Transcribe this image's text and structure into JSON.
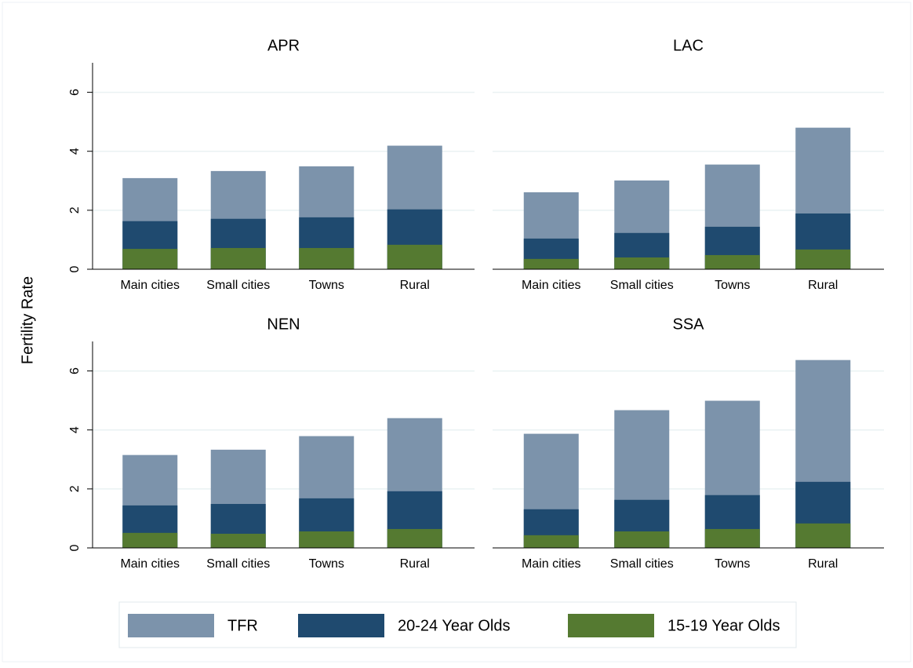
{
  "chart_data": {
    "type": "bar",
    "y_label": "Fertility Rate",
    "categories": [
      "Main cities",
      "Small cities",
      "Towns",
      "Rural"
    ],
    "ylim": [
      0,
      7
    ],
    "yticks": [
      0,
      2,
      4,
      6
    ],
    "grid": true,
    "series": [
      {
        "name": "TFR",
        "color": "#7c93ab"
      },
      {
        "name": "20-24 Year Olds",
        "color": "#1f4a6f"
      },
      {
        "name": "15-19 Year Olds",
        "color": "#557a31"
      }
    ],
    "panels": [
      {
        "title": "APR",
        "series": [
          {
            "values": [
              3.09,
              3.33,
              3.49,
              4.19
            ]
          },
          {
            "values": [
              1.63,
              1.71,
              1.76,
              2.03
            ]
          },
          {
            "values": [
              0.69,
              0.72,
              0.72,
              0.83
            ]
          }
        ]
      },
      {
        "title": "LAC",
        "series": [
          {
            "values": [
              2.61,
              3.01,
              3.55,
              4.8
            ]
          },
          {
            "values": [
              1.04,
              1.23,
              1.44,
              1.89
            ]
          },
          {
            "values": [
              0.35,
              0.4,
              0.48,
              0.67
            ]
          }
        ]
      },
      {
        "title": "NEN",
        "series": [
          {
            "values": [
              3.15,
              3.33,
              3.79,
              4.4
            ]
          },
          {
            "values": [
              1.44,
              1.49,
              1.68,
              1.92
            ]
          },
          {
            "values": [
              0.51,
              0.48,
              0.56,
              0.64
            ]
          }
        ]
      },
      {
        "title": "SSA",
        "series": [
          {
            "values": [
              3.87,
              4.67,
              4.99,
              6.37
            ]
          },
          {
            "values": [
              1.31,
              1.63,
              1.79,
              2.24
            ]
          },
          {
            "values": [
              0.43,
              0.56,
              0.64,
              0.83
            ]
          }
        ]
      }
    ]
  }
}
